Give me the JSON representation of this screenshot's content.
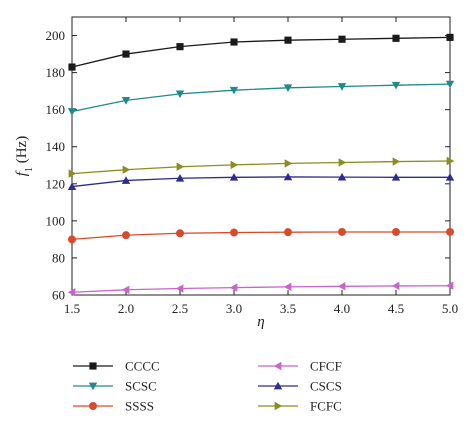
{
  "chart_data": {
    "type": "line",
    "xlabel": "η",
    "ylabel": "f1 (Hz)",
    "ylabel_main": "f",
    "ylabel_sub": "1",
    "ylabel_unit": " (Hz)",
    "xlim": [
      1.5,
      5.0
    ],
    "ylim": [
      60,
      210
    ],
    "xticks": [
      1.5,
      2.0,
      2.5,
      3.0,
      3.5,
      4.0,
      4.5,
      5.0
    ],
    "xtick_labels": [
      "1.5",
      "2.0",
      "2.5",
      "3.0",
      "3.5",
      "4.0",
      "4.5",
      "5.0"
    ],
    "yticks": [
      60,
      80,
      100,
      120,
      140,
      160,
      180,
      200
    ],
    "ytick_labels": [
      "60",
      "80",
      "100",
      "120",
      "140",
      "160",
      "180",
      "200"
    ],
    "grid": false,
    "legend_position": "bottom",
    "x": [
      1.5,
      2.0,
      2.5,
      3.0,
      3.5,
      4.0,
      4.5,
      5.0
    ],
    "series": [
      {
        "name": "CCCC",
        "marker": "square",
        "color": "#1a1a1a",
        "values": [
          183,
          190,
          194,
          196.5,
          197.5,
          198,
          198.5,
          199
        ]
      },
      {
        "name": "SCSC",
        "marker": "triangle-down",
        "color": "#1f8a8a",
        "values": [
          159,
          165,
          168.5,
          170.5,
          171.8,
          172.5,
          173.2,
          173.8
        ]
      },
      {
        "name": "SSSS",
        "marker": "circle",
        "color": "#d94a2b",
        "values": [
          90,
          92.3,
          93.3,
          93.7,
          93.9,
          94.0,
          94.0,
          94.0
        ]
      },
      {
        "name": "CFCF",
        "marker": "triangle-left",
        "color": "#c964c9",
        "values": [
          61.5,
          62.8,
          63.5,
          64.0,
          64.4,
          64.7,
          64.9,
          65.0
        ]
      },
      {
        "name": "CSCS",
        "marker": "triangle-up",
        "color": "#2d2b8c",
        "values": [
          118.5,
          121.8,
          123.0,
          123.5,
          123.7,
          123.6,
          123.5,
          123.5
        ]
      },
      {
        "name": "FCFC",
        "marker": "triangle-right",
        "color": "#8c8c1f",
        "values": [
          125.5,
          127.6,
          129.2,
          130.2,
          131.0,
          131.5,
          132.0,
          132.3
        ]
      }
    ]
  }
}
